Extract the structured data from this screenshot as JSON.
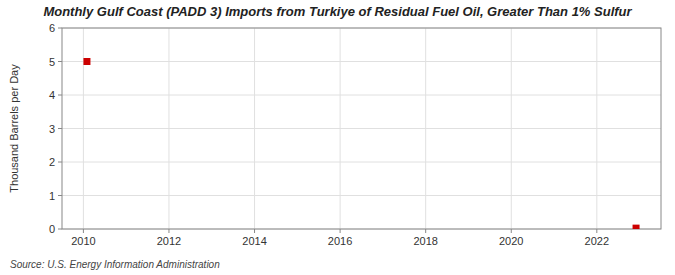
{
  "chart_data": {
    "type": "scatter",
    "title": "Monthly Gulf Coast (PADD 3) Imports from Turkiye of Residual Fuel Oil, Greater Than 1% Sulfur",
    "ylabel": "Thousand Barrels per Day",
    "annotation": "Source: U.S. Energy Information Administration",
    "x": [
      2010.083,
      2022.917
    ],
    "values": [
      5.0,
      0.026
    ],
    "color": "#cc0000",
    "marker": "square",
    "xlim": [
      2009.5,
      2023.5
    ],
    "ylim": [
      0,
      6
    ],
    "xticks": [
      2010,
      2012,
      2014,
      2016,
      2018,
      2020,
      2022
    ],
    "yticks": [
      0,
      1,
      2,
      3,
      4,
      5,
      6
    ],
    "grid": true
  }
}
